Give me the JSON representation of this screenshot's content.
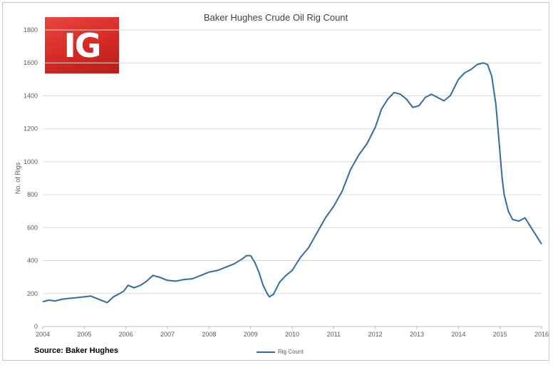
{
  "chart_data": {
    "type": "line",
    "title": "Baker Hughes Crude Oil Rig Count",
    "xlabel": "",
    "ylabel": "No. of Rigs",
    "xlim": [
      2004,
      2016
    ],
    "ylim": [
      0,
      1800
    ],
    "y_ticks": [
      0,
      200,
      400,
      600,
      800,
      1000,
      1200,
      1400,
      1600,
      1800
    ],
    "x_ticks": [
      "2004",
      "2005",
      "2006",
      "2007",
      "2008",
      "2009",
      "2010",
      "2011",
      "2012",
      "2013",
      "2014",
      "2015",
      "2016"
    ],
    "grid": "horizontal",
    "legend_position": "bottom",
    "series": [
      {
        "name": "Rig Count",
        "color": "#2e6ca8",
        "x": [
          2004.0,
          2004.15,
          2004.3,
          2004.45,
          2004.6,
          2004.8,
          2005.0,
          2005.15,
          2005.3,
          2005.45,
          2005.55,
          2005.7,
          2005.85,
          2005.95,
          2006.05,
          2006.2,
          2006.35,
          2006.5,
          2006.65,
          2006.8,
          2007.0,
          2007.2,
          2007.4,
          2007.6,
          2007.8,
          2008.0,
          2008.2,
          2008.4,
          2008.6,
          2008.8,
          2008.9,
          2009.0,
          2009.1,
          2009.2,
          2009.3,
          2009.4,
          2009.45,
          2009.55,
          2009.7,
          2009.85,
          2010.0,
          2010.2,
          2010.4,
          2010.6,
          2010.8,
          2011.0,
          2011.2,
          2011.4,
          2011.6,
          2011.8,
          2012.0,
          2012.15,
          2012.3,
          2012.45,
          2012.6,
          2012.75,
          2012.9,
          2013.05,
          2013.2,
          2013.35,
          2013.5,
          2013.65,
          2013.8,
          2014.0,
          2014.15,
          2014.3,
          2014.45,
          2014.6,
          2014.7,
          2014.8,
          2014.9,
          2014.95,
          2015.0,
          2015.05,
          2015.1,
          2015.2,
          2015.3,
          2015.45,
          2015.6,
          2015.7,
          2015.8,
          2015.9,
          2016.0
        ],
        "values": [
          150,
          160,
          155,
          165,
          170,
          175,
          180,
          185,
          170,
          155,
          145,
          180,
          200,
          215,
          250,
          235,
          250,
          275,
          310,
          300,
          280,
          275,
          285,
          290,
          310,
          330,
          340,
          360,
          380,
          410,
          430,
          430,
          390,
          330,
          250,
          200,
          180,
          195,
          270,
          310,
          340,
          420,
          480,
          570,
          660,
          730,
          820,
          950,
          1040,
          1110,
          1210,
          1320,
          1380,
          1420,
          1410,
          1380,
          1330,
          1340,
          1390,
          1410,
          1390,
          1370,
          1400,
          1500,
          1540,
          1560,
          1590,
          1600,
          1590,
          1520,
          1350,
          1200,
          1050,
          900,
          800,
          700,
          650,
          640,
          660,
          620,
          580,
          540,
          500
        ]
      }
    ]
  },
  "source": "Source: Baker Hughes",
  "logo_text": "IG",
  "colors": {
    "line": "#2e6ca8",
    "logo": "#d42a24",
    "grid": "#d9d9d9"
  }
}
